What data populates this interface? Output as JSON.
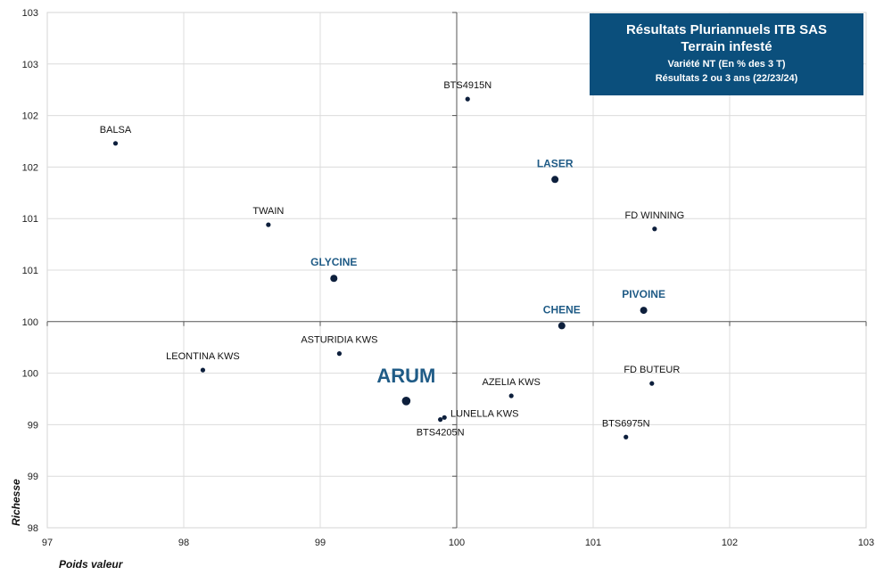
{
  "title_box": {
    "line1": "Résultats Pluriannuels ITB SAS",
    "line2": "Terrain infesté",
    "line3": "Variété NT (En % des 3 T)",
    "line4": "Résultats 2 ou 3 ans (22/23/24)"
  },
  "colors": {
    "box": "#0b4f7c",
    "highlight": "#1f5b86",
    "point": "#0d1f3c",
    "grid": "#dcdcdc"
  },
  "chart_data": {
    "type": "scatter",
    "title": "Résultats Pluriannuels ITB SAS",
    "subtitle": "Terrain infesté — Variété NT (En % des 3 T) — Résultats 2 ou 3 ans (22/23/24)",
    "xlabel": "Poids valeur",
    "ylabel": "Richesse",
    "xlim": [
      97,
      103
    ],
    "ylim": [
      98,
      103
    ],
    "x_ticks": [
      97,
      98,
      99,
      100,
      101,
      102,
      103
    ],
    "y_ticks": [
      {
        "value": 98.0,
        "label": "98"
      },
      {
        "value": 98.5,
        "label": "99"
      },
      {
        "value": 99.0,
        "label": "99"
      },
      {
        "value": 99.5,
        "label": "100"
      },
      {
        "value": 100.0,
        "label": "100"
      },
      {
        "value": 100.5,
        "label": "101"
      },
      {
        "value": 101.0,
        "label": "101"
      },
      {
        "value": 101.5,
        "label": "102"
      },
      {
        "value": 102.0,
        "label": "102"
      },
      {
        "value": 102.5,
        "label": "103"
      },
      {
        "value": 103.0,
        "label": "103"
      }
    ],
    "crosshair": {
      "x": 100,
      "y": 100
    },
    "grid": true,
    "points": [
      {
        "label": "BALSA",
        "x": 97.5,
        "y": 101.73,
        "style": "normal"
      },
      {
        "label": "TWAIN",
        "x": 98.62,
        "y": 100.94,
        "style": "normal"
      },
      {
        "label": "GLYCINE",
        "x": 99.1,
        "y": 100.42,
        "style": "highlight"
      },
      {
        "label": "BTS4915N",
        "x": 100.08,
        "y": 102.16,
        "style": "normal"
      },
      {
        "label": "LASER",
        "x": 100.72,
        "y": 101.38,
        "style": "highlight"
      },
      {
        "label": "FD WINNING",
        "x": 101.45,
        "y": 100.9,
        "style": "normal"
      },
      {
        "label": "PIVOINE",
        "x": 101.37,
        "y": 100.11,
        "style": "highlight"
      },
      {
        "label": "CHENE",
        "x": 100.77,
        "y": 99.96,
        "style": "highlight"
      },
      {
        "label": "LEONTINA KWS",
        "x": 98.14,
        "y": 99.53,
        "style": "normal"
      },
      {
        "label": "ASTURIDIA KWS",
        "x": 99.14,
        "y": 99.69,
        "style": "normal"
      },
      {
        "label": "ARUM",
        "x": 99.63,
        "y": 99.23,
        "style": "main"
      },
      {
        "label": "LUNELLA KWS",
        "x": 99.91,
        "y": 99.07,
        "style": "normal"
      },
      {
        "label": "BTS4205N",
        "x": 99.88,
        "y": 99.05,
        "style": "normal"
      },
      {
        "label": "AZELIA KWS",
        "x": 100.4,
        "y": 99.28,
        "style": "normal"
      },
      {
        "label": "FD BUTEUR",
        "x": 101.43,
        "y": 99.4,
        "style": "normal"
      },
      {
        "label": "BTS6975N",
        "x": 101.24,
        "y": 98.88,
        "style": "normal"
      }
    ]
  }
}
